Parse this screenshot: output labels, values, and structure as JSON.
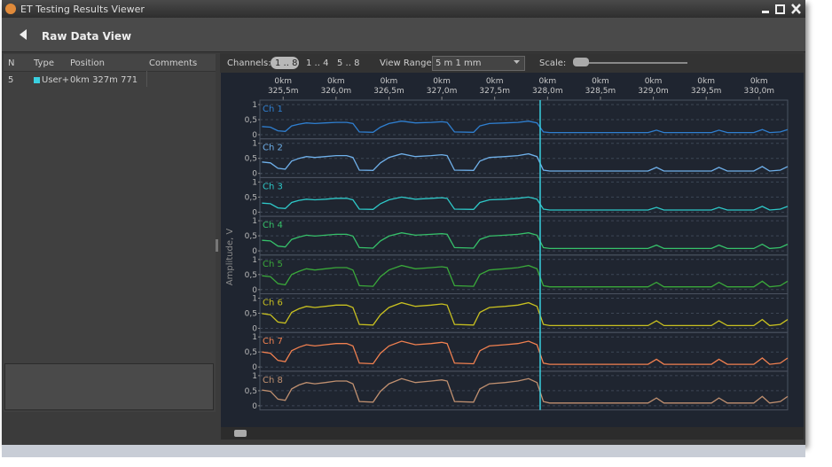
{
  "window": {
    "title": "ET Testing Results Viewer"
  },
  "toolbar": {
    "title": "Raw Data View"
  },
  "table": {
    "columns": [
      "N",
      "Type",
      "Position",
      "Comments"
    ],
    "rows": [
      [
        "5",
        "User+",
        "0km 327m 771"
      ]
    ]
  },
  "controls": {
    "channels_label": "Channels:",
    "channel_buttons": [
      "1 .. 8",
      "1 .. 4",
      "5 .. 8"
    ],
    "range_label": "View Range:",
    "range_value": "5 m 1 mm",
    "scale_label": "Scale:"
  },
  "chart_data": {
    "type": "line",
    "stacked_panels": true,
    "grid": true,
    "ylabel": "Amplitude, V",
    "xlim": [
      325.28,
      330.27
    ],
    "xticks": [
      {
        "value": 325.5,
        "label": "0km\n325,5m"
      },
      {
        "value": 326.0,
        "label": "0km\n326,0m"
      },
      {
        "value": 326.5,
        "label": "0km\n326,5m"
      },
      {
        "value": 327.0,
        "label": "0km\n327,0m"
      },
      {
        "value": 327.5,
        "label": "0km\n327,5m"
      },
      {
        "value": 328.0,
        "label": "0km\n328,0m"
      },
      {
        "value": 328.5,
        "label": "0km\n328,5m"
      },
      {
        "value": 329.0,
        "label": "0km\n329,0m"
      },
      {
        "value": 329.5,
        "label": "0km\n329,5m"
      },
      {
        "value": 330.0,
        "label": "0km\n330,0m"
      }
    ],
    "ylim": [
      0,
      1
    ],
    "yticks": [
      0,
      {
        "value": 0.5,
        "label": "0,5"
      },
      1
    ],
    "cursor_x": 327.93,
    "x": [
      325.3,
      325.38,
      325.45,
      325.52,
      325.58,
      325.65,
      325.72,
      325.8,
      325.9,
      326.0,
      326.1,
      326.16,
      326.22,
      326.35,
      326.42,
      326.5,
      326.62,
      326.75,
      326.9,
      327.0,
      327.05,
      327.12,
      327.3,
      327.36,
      327.45,
      327.6,
      327.72,
      327.82,
      327.9,
      327.96,
      328.02,
      328.5,
      328.95,
      329.03,
      329.1,
      329.55,
      329.62,
      329.7,
      329.95,
      330.03,
      330.1,
      330.2,
      330.27
    ],
    "series": [
      {
        "name": "Ch 1",
        "color": "#2f7fd0",
        "values": [
          0.27,
          0.25,
          0.13,
          0.11,
          0.29,
          0.35,
          0.39,
          0.37,
          0.39,
          0.41,
          0.41,
          0.37,
          0.09,
          0.08,
          0.25,
          0.37,
          0.45,
          0.39,
          0.41,
          0.43,
          0.41,
          0.09,
          0.08,
          0.29,
          0.37,
          0.39,
          0.41,
          0.45,
          0.39,
          0.09,
          0.07,
          0.07,
          0.07,
          0.15,
          0.07,
          0.07,
          0.15,
          0.07,
          0.07,
          0.17,
          0.07,
          0.09,
          0.17
        ]
      },
      {
        "name": "Ch 2",
        "color": "#6fb0ea",
        "values": [
          0.38,
          0.35,
          0.17,
          0.14,
          0.41,
          0.5,
          0.56,
          0.53,
          0.56,
          0.59,
          0.59,
          0.53,
          0.11,
          0.1,
          0.35,
          0.53,
          0.65,
          0.56,
          0.59,
          0.62,
          0.59,
          0.11,
          0.1,
          0.41,
          0.53,
          0.56,
          0.59,
          0.65,
          0.56,
          0.11,
          0.08,
          0.08,
          0.08,
          0.2,
          0.08,
          0.08,
          0.2,
          0.08,
          0.08,
          0.23,
          0.08,
          0.11,
          0.23
        ]
      },
      {
        "name": "Ch 3",
        "color": "#2ec8c8",
        "values": [
          0.3,
          0.28,
          0.14,
          0.12,
          0.32,
          0.39,
          0.43,
          0.41,
          0.43,
          0.46,
          0.46,
          0.41,
          0.1,
          0.09,
          0.28,
          0.41,
          0.5,
          0.43,
          0.46,
          0.48,
          0.46,
          0.1,
          0.09,
          0.32,
          0.41,
          0.43,
          0.46,
          0.5,
          0.43,
          0.1,
          0.07,
          0.07,
          0.07,
          0.16,
          0.07,
          0.07,
          0.16,
          0.07,
          0.07,
          0.19,
          0.07,
          0.1,
          0.19
        ]
      },
      {
        "name": "Ch 4",
        "color": "#36c06a",
        "values": [
          0.35,
          0.33,
          0.16,
          0.13,
          0.38,
          0.46,
          0.52,
          0.49,
          0.52,
          0.55,
          0.55,
          0.49,
          0.11,
          0.09,
          0.33,
          0.49,
          0.6,
          0.52,
          0.55,
          0.57,
          0.55,
          0.11,
          0.09,
          0.38,
          0.49,
          0.52,
          0.55,
          0.6,
          0.52,
          0.11,
          0.08,
          0.08,
          0.08,
          0.19,
          0.08,
          0.08,
          0.19,
          0.08,
          0.08,
          0.22,
          0.08,
          0.11,
          0.22
        ]
      },
      {
        "name": "Ch 5",
        "color": "#3aa83a",
        "values": [
          0.46,
          0.43,
          0.2,
          0.16,
          0.5,
          0.61,
          0.69,
          0.65,
          0.69,
          0.73,
          0.73,
          0.65,
          0.13,
          0.11,
          0.43,
          0.65,
          0.8,
          0.69,
          0.73,
          0.76,
          0.73,
          0.13,
          0.11,
          0.5,
          0.65,
          0.69,
          0.73,
          0.8,
          0.69,
          0.13,
          0.09,
          0.09,
          0.09,
          0.24,
          0.09,
          0.09,
          0.24,
          0.09,
          0.09,
          0.28,
          0.09,
          0.13,
          0.28
        ]
      },
      {
        "name": "Ch 6",
        "color": "#c8c020",
        "values": [
          0.49,
          0.45,
          0.21,
          0.17,
          0.53,
          0.65,
          0.73,
          0.69,
          0.73,
          0.77,
          0.77,
          0.69,
          0.13,
          0.11,
          0.45,
          0.69,
          0.85,
          0.73,
          0.77,
          0.81,
          0.77,
          0.13,
          0.11,
          0.53,
          0.69,
          0.73,
          0.77,
          0.85,
          0.73,
          0.13,
          0.09,
          0.09,
          0.09,
          0.25,
          0.09,
          0.09,
          0.25,
          0.09,
          0.09,
          0.29,
          0.09,
          0.13,
          0.29
        ]
      },
      {
        "name": "Ch 7",
        "color": "#f08050",
        "values": [
          0.5,
          0.46,
          0.22,
          0.18,
          0.54,
          0.66,
          0.74,
          0.7,
          0.74,
          0.78,
          0.78,
          0.7,
          0.13,
          0.11,
          0.46,
          0.7,
          0.86,
          0.74,
          0.78,
          0.82,
          0.78,
          0.13,
          0.11,
          0.54,
          0.7,
          0.74,
          0.78,
          0.86,
          0.74,
          0.13,
          0.09,
          0.09,
          0.09,
          0.26,
          0.09,
          0.09,
          0.26,
          0.09,
          0.09,
          0.3,
          0.09,
          0.13,
          0.3
        ]
      },
      {
        "name": "Ch 8",
        "color": "#c09070",
        "values": [
          0.52,
          0.48,
          0.22,
          0.18,
          0.56,
          0.69,
          0.77,
          0.73,
          0.77,
          0.82,
          0.82,
          0.73,
          0.14,
          0.12,
          0.48,
          0.73,
          0.9,
          0.77,
          0.82,
          0.86,
          0.82,
          0.14,
          0.12,
          0.56,
          0.73,
          0.77,
          0.82,
          0.9,
          0.77,
          0.14,
          0.09,
          0.09,
          0.09,
          0.26,
          0.09,
          0.09,
          0.26,
          0.09,
          0.09,
          0.31,
          0.09,
          0.14,
          0.31
        ]
      }
    ]
  }
}
